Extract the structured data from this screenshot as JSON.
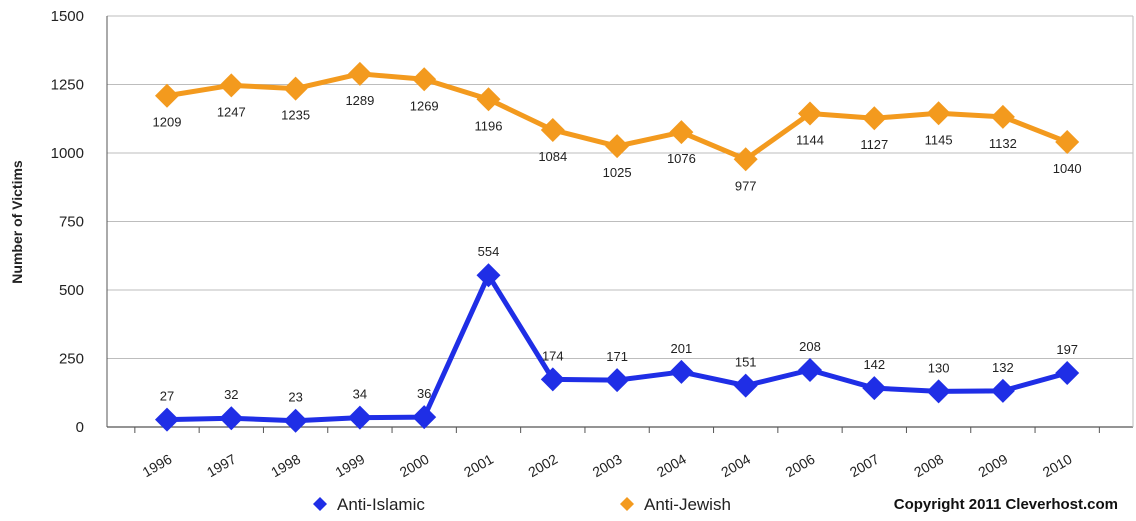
{
  "chart_data": {
    "type": "line",
    "categories": [
      "1996",
      "1997",
      "1998",
      "1999",
      "2000",
      "2001",
      "2002",
      "2003",
      "2004",
      "2004",
      "2006",
      "2007",
      "2008",
      "2009",
      "2010"
    ],
    "series": [
      {
        "name": "Anti-Islamic",
        "color": "#1f2ee6",
        "values": [
          27,
          32,
          23,
          34,
          36,
          554,
          174,
          171,
          201,
          151,
          208,
          142,
          130,
          132,
          197
        ]
      },
      {
        "name": "Anti-Jewish",
        "color": "#f39a1e",
        "values": [
          1209,
          1247,
          1235,
          1289,
          1269,
          1196,
          1084,
          1025,
          1076,
          977,
          1144,
          1127,
          1145,
          1132,
          1040
        ]
      }
    ],
    "ylabel": "Number of Victims",
    "ylim": [
      0,
      1500
    ],
    "yticks": [
      "0",
      "250",
      "500",
      "750",
      "1000",
      "1250",
      "1500"
    ],
    "grid": true,
    "legend_position": "bottom"
  },
  "copyright": "Copyright 2011 Cleverhost.com"
}
